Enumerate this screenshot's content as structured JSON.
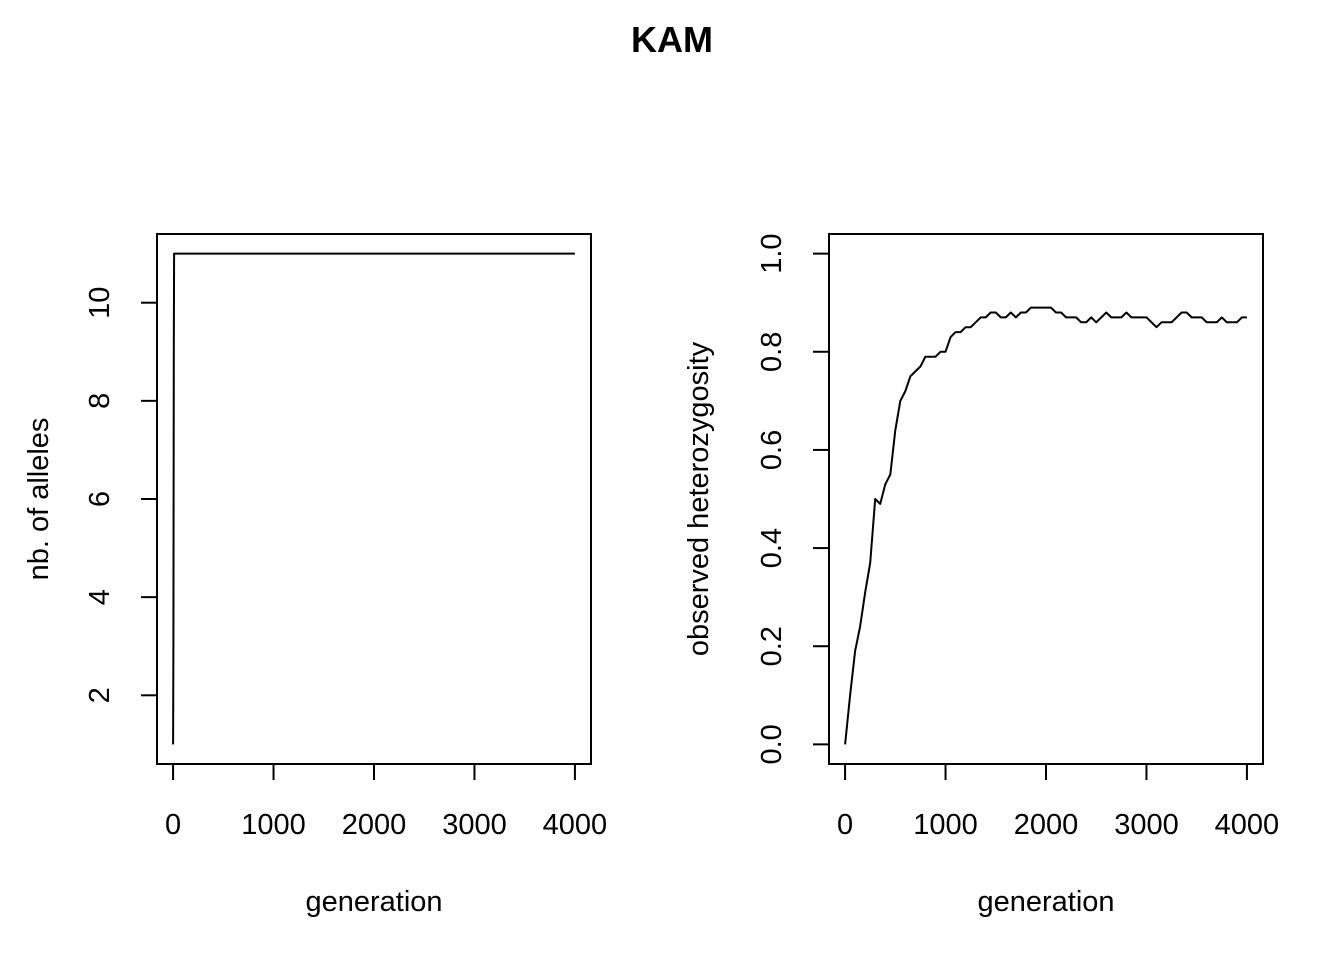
{
  "figure": {
    "title": "KAM"
  },
  "chart_data": [
    {
      "type": "line",
      "title": "",
      "xlabel": "generation",
      "ylabel": "nb. of alleles",
      "xlim": [
        -160,
        4160
      ],
      "ylim": [
        0.6,
        11.4
      ],
      "xticks": [
        0,
        1000,
        2000,
        3000,
        4000
      ],
      "yticks": [
        2,
        4,
        6,
        8,
        10
      ],
      "grid": false,
      "series": [
        {
          "x": [
            0,
            3,
            5,
            7,
            10,
            4000
          ],
          "y": [
            1,
            3,
            6,
            9,
            11,
            11
          ]
        }
      ]
    },
    {
      "type": "line",
      "title": "",
      "xlabel": "generation",
      "ylabel": "observed heterozygosity",
      "xlim": [
        -160,
        4160
      ],
      "ylim": [
        -0.04,
        1.04
      ],
      "xticks": [
        0,
        1000,
        2000,
        3000,
        4000
      ],
      "yticks": [
        0.0,
        0.2,
        0.4,
        0.6,
        0.8,
        1.0
      ],
      "grid": false,
      "series": [
        {
          "x": [
            0,
            50,
            100,
            150,
            200,
            250,
            300,
            350,
            400,
            450,
            500,
            550,
            600,
            650,
            700,
            750,
            800,
            850,
            900,
            950,
            1000,
            1050,
            1100,
            1150,
            1200,
            1250,
            1300,
            1350,
            1400,
            1450,
            1500,
            1550,
            1600,
            1650,
            1700,
            1750,
            1800,
            1850,
            1900,
            1950,
            2000,
            2050,
            2100,
            2150,
            2200,
            2250,
            2300,
            2350,
            2400,
            2450,
            2500,
            2550,
            2600,
            2650,
            2700,
            2750,
            2800,
            2850,
            2900,
            2950,
            3000,
            3050,
            3100,
            3150,
            3200,
            3250,
            3300,
            3350,
            3400,
            3450,
            3500,
            3550,
            3600,
            3650,
            3700,
            3750,
            3800,
            3850,
            3900,
            3950,
            4000
          ],
          "y": [
            0.0,
            0.1,
            0.19,
            0.24,
            0.31,
            0.37,
            0.5,
            0.49,
            0.53,
            0.55,
            0.64,
            0.7,
            0.72,
            0.75,
            0.76,
            0.77,
            0.79,
            0.79,
            0.79,
            0.8,
            0.8,
            0.83,
            0.84,
            0.84,
            0.85,
            0.85,
            0.86,
            0.87,
            0.87,
            0.88,
            0.88,
            0.87,
            0.87,
            0.88,
            0.87,
            0.88,
            0.88,
            0.89,
            0.89,
            0.89,
            0.89,
            0.89,
            0.88,
            0.88,
            0.87,
            0.87,
            0.87,
            0.86,
            0.86,
            0.87,
            0.86,
            0.87,
            0.88,
            0.87,
            0.87,
            0.87,
            0.88,
            0.87,
            0.87,
            0.87,
            0.87,
            0.86,
            0.85,
            0.86,
            0.86,
            0.86,
            0.87,
            0.88,
            0.88,
            0.87,
            0.87,
            0.87,
            0.86,
            0.86,
            0.86,
            0.87,
            0.86,
            0.86,
            0.86,
            0.87,
            0.87
          ]
        }
      ]
    }
  ]
}
